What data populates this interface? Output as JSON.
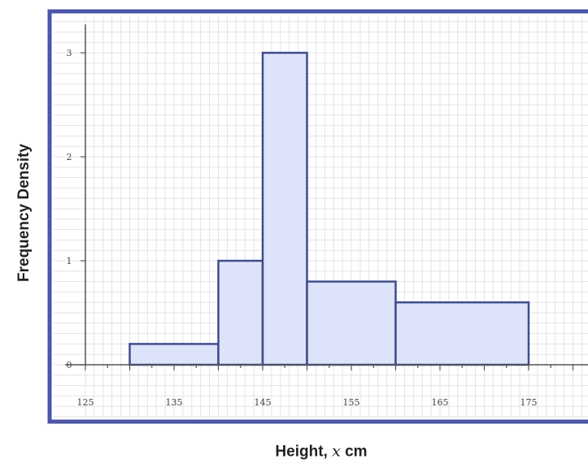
{
  "chart_data": {
    "type": "histogram",
    "xlabel_prefix": "Height, ",
    "xlabel_var": "x",
    "xlabel_suffix": " cm",
    "ylabel": "Frequency Density",
    "xlim": [
      125,
      180
    ],
    "ylim": [
      0,
      3.3
    ],
    "x_ticks": [
      125,
      135,
      145,
      155,
      165,
      175
    ],
    "y_ticks": [
      0,
      1,
      2,
      3
    ],
    "grid": true,
    "bars": [
      {
        "x_start": 130,
        "x_end": 140,
        "density": 0.2
      },
      {
        "x_start": 140,
        "x_end": 145,
        "density": 1.0
      },
      {
        "x_start": 145,
        "x_end": 150,
        "density": 3.0
      },
      {
        "x_start": 150,
        "x_end": 160,
        "density": 0.8
      },
      {
        "x_start": 160,
        "x_end": 175,
        "density": 0.6
      }
    ],
    "colors": {
      "bar_fill": "#dde3f8",
      "bar_stroke": "#3f4d8c",
      "frame": "#4a55a8",
      "grid": "#e3e3e3",
      "axis": "#555555"
    }
  }
}
